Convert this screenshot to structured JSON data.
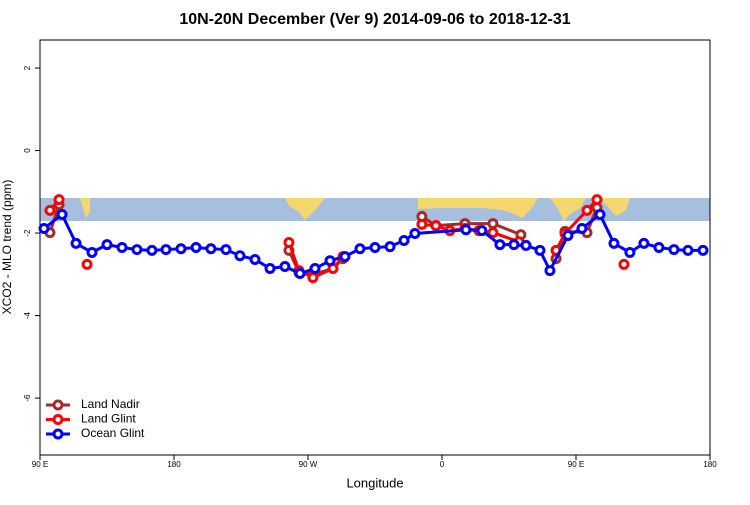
{
  "chart_data": {
    "type": "line",
    "title": "10N-20N December (Ver 9)   2014-09-06 to 2018-12-31",
    "x_label": "Longitude",
    "y_label": "XCO2 - MLO trend (ppm)",
    "xlim": [
      90,
      540
    ],
    "ylim": [
      -7.38,
      2.68
    ],
    "xticks": [
      {
        "value": 90,
        "label": "90 E"
      },
      {
        "value": 180,
        "label": "180"
      },
      {
        "value": 270,
        "label": "90 W"
      },
      {
        "value": 360,
        "label": "0"
      },
      {
        "value": 450,
        "label": "90 E"
      },
      {
        "value": 540,
        "label": "180"
      }
    ],
    "yticks": [
      -6,
      -4,
      -2,
      0,
      2
    ],
    "legend": "bottom-left",
    "series": [
      {
        "name": "Land Nadir",
        "color": "#a52a2a",
        "x": [
          96.7,
          102.8,
          null,
          257.2,
          263.9,
          273.3,
          286.8,
          293.5,
          null,
          346.5,
          355.9,
          375.4,
          394.2,
          413,
          null,
          436.6,
          442.6,
          457.4,
          464.1
        ],
        "values": [
          -1.99,
          -1.31,
          null,
          -2.42,
          -2.96,
          -3.0,
          -2.86,
          -2.62,
          null,
          -1.6,
          -1.82,
          -1.77,
          -1.77,
          -2.04,
          null,
          -2.62,
          -1.96,
          -1.99,
          -1.38
        ]
      },
      {
        "name": "Land Glint",
        "color": "#ff0000",
        "x": [
          96.7,
          102.8,
          null,
          121.6,
          null,
          257.2,
          263.9,
          273.3,
          286.8,
          293.5,
          null,
          346.5,
          355.9,
          365.3,
          375.4,
          384.8,
          394.2,
          411.7,
          null,
          436.6,
          442.6,
          457.4,
          464.1,
          null,
          482.2
        ],
        "values": [
          -1.45,
          -1.19,
          null,
          -2.76,
          null,
          -2.23,
          -2.91,
          -3.08,
          -2.86,
          -2.57,
          null,
          -1.79,
          -1.82,
          -1.94,
          -1.89,
          -1.94,
          -1.99,
          -2.21,
          null,
          -2.42,
          -2.01,
          -1.45,
          -1.19,
          null,
          -2.76
        ]
      },
      {
        "name": "Ocean Glint",
        "color": "#0000ff",
        "x": [
          92.7,
          104.8,
          114.2,
          124.9,
          135,
          145.1,
          155.1,
          165.2,
          174.6,
          184.7,
          194.8,
          204.8,
          214.9,
          224.3,
          234.4,
          244.5,
          254.5,
          264.6,
          274.7,
          284.8,
          294.8,
          304.9,
          315,
          325.1,
          334.5,
          341.8,
          376.1,
          386.8,
          398.9,
          408.3,
          416.4,
          425.8,
          432.5,
          444.6,
          454,
          466.1,
          475.5,
          486.2,
          495.6,
          505.7,
          515.8,
          525.2,
          535.3
        ],
        "values": [
          -1.89,
          -1.55,
          -2.25,
          -2.47,
          -2.28,
          -2.35,
          -2.4,
          -2.42,
          -2.4,
          -2.38,
          -2.35,
          -2.38,
          -2.4,
          -2.55,
          -2.64,
          -2.86,
          -2.81,
          -2.98,
          -2.86,
          -2.67,
          -2.57,
          -2.38,
          -2.35,
          -2.33,
          -2.18,
          -2.01,
          -1.92,
          -1.94,
          -2.28,
          -2.28,
          -2.3,
          -2.42,
          -2.91,
          -2.06,
          -1.89,
          -1.55,
          -2.25,
          -2.47,
          -2.25,
          -2.35,
          -2.4,
          -2.42,
          -2.42
        ]
      }
    ]
  }
}
